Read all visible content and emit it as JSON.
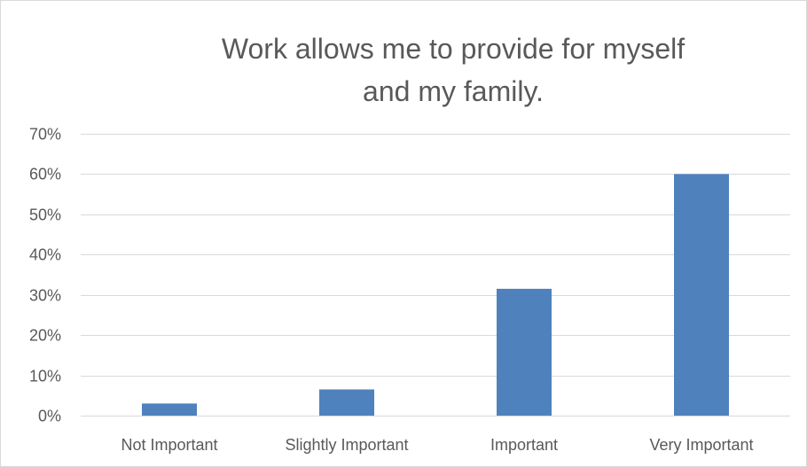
{
  "chart_data": {
    "type": "bar",
    "title": "Work allows me to provide for myself and my family.",
    "categories": [
      "Not Important",
      "Slightly Important",
      "Important",
      "Very Important"
    ],
    "values": [
      0.03,
      0.065,
      0.315,
      0.6
    ],
    "ylim": [
      0,
      0.7
    ],
    "yticks": [
      0,
      0.1,
      0.2,
      0.3,
      0.4,
      0.5,
      0.6,
      0.7
    ],
    "ytick_labels": [
      "0%",
      "10%",
      "20%",
      "30%",
      "40%",
      "50%",
      "60%",
      "70%"
    ],
    "xlabel": "",
    "ylabel": "",
    "grid": true,
    "legend": "none",
    "bar_color": "#4f81bd",
    "grid_color": "#d9d9d9",
    "text_color": "#595959"
  }
}
